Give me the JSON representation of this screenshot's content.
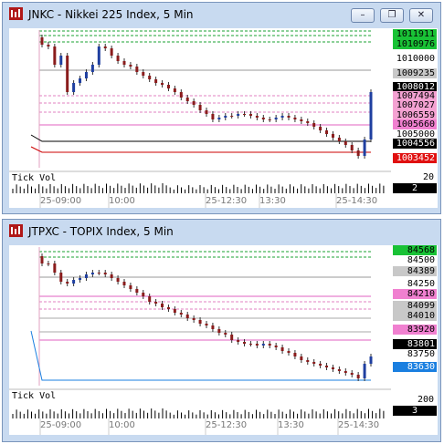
{
  "charts": [
    {
      "title": "JNKC - Nikkei 225 Index, 5 Min",
      "subpanel_label": "Tick Vol",
      "subpanel_values": [
        "20",
        "2"
      ],
      "time_labels": [
        "25-09:00",
        "10:00",
        "25-12:30",
        "13:30",
        "25-14:30"
      ],
      "price_tags": [
        {
          "text": "1011911",
          "bg": "#19c236",
          "fg": "#000000"
        },
        {
          "text": "1010976",
          "bg": "#19c236",
          "fg": "#000000"
        },
        {
          "text": "1010000",
          "bg": "#ffffff",
          "fg": "#000000"
        },
        {
          "text": "1009235",
          "bg": "#c8c8c8",
          "fg": "#000000"
        },
        {
          "text": "1008012",
          "bg": "#000000",
          "fg": "#ffffff"
        },
        {
          "text": "1007494",
          "bg": "#f4a2d2",
          "fg": "#000000"
        },
        {
          "text": "1007027",
          "bg": "#f4a2d2",
          "fg": "#000000"
        },
        {
          "text": "1006559",
          "bg": "#f4a2d2",
          "fg": "#000000"
        },
        {
          "text": "1005660",
          "bg": "#f080d0",
          "fg": "#000000"
        },
        {
          "text": "1005000",
          "bg": "#ffffff",
          "fg": "#000000"
        },
        {
          "text": "1004556",
          "bg": "#000000",
          "fg": "#ffffff"
        },
        {
          "text": "1003452",
          "bg": "#e01010",
          "fg": "#ffffff"
        }
      ],
      "bottom_line_color": "#cc0000"
    },
    {
      "title": "JTPXC - TOPIX Index, 5 Min",
      "subpanel_label": "Tick Vol",
      "subpanel_values": [
        "200",
        "3"
      ],
      "time_labels": [
        "25-09:00",
        "10:00",
        "25-12:30",
        "13:30",
        "25-14:30"
      ],
      "price_tags": [
        {
          "text": "84568",
          "bg": "#19c236",
          "fg": "#000000"
        },
        {
          "text": "84500",
          "bg": "#ffffff",
          "fg": "#000000"
        },
        {
          "text": "84389",
          "bg": "#c8c8c8",
          "fg": "#000000"
        },
        {
          "text": "84250",
          "bg": "#ffffff",
          "fg": "#000000"
        },
        {
          "text": "84210",
          "bg": "#f080d0",
          "fg": "#000000"
        },
        {
          "text": "84099",
          "bg": "#c8c8c8",
          "fg": "#000000"
        },
        {
          "text": "84010",
          "bg": "#c8c8c8",
          "fg": "#000000"
        },
        {
          "text": "83920",
          "bg": "#f080d0",
          "fg": "#000000"
        },
        {
          "text": "83801",
          "bg": "#000000",
          "fg": "#ffffff"
        },
        {
          "text": "83750",
          "bg": "#ffffff",
          "fg": "#000000"
        },
        {
          "text": "83630",
          "bg": "#1a7fe0",
          "fg": "#ffffff"
        }
      ],
      "bottom_line_color": "#1a7fe0"
    }
  ],
  "window_buttons": {
    "minimize": "–",
    "restore": "❐",
    "close": "✕"
  }
}
